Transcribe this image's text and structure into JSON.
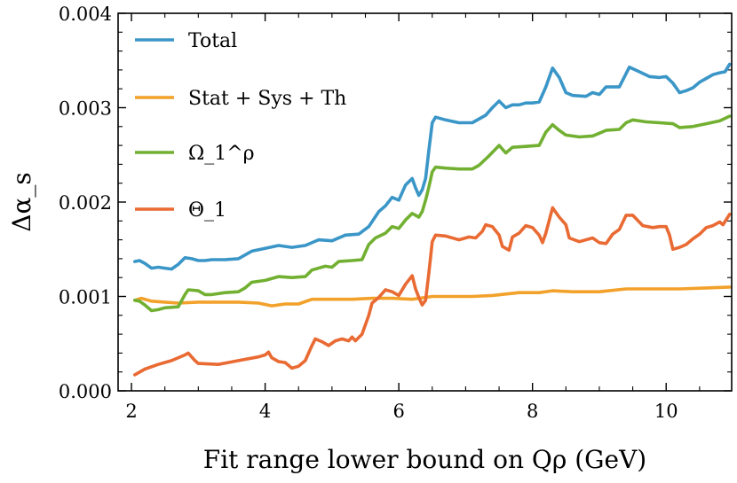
{
  "chart_data": {
    "type": "line",
    "title": "",
    "xlabel": "Fit range lower bound on Qρ (GeV)",
    "ylabel": "Δα_s",
    "xlim": [
      1.8,
      10.98
    ],
    "ylim": [
      0.0,
      0.004
    ],
    "xticks": [
      2,
      4,
      6,
      8,
      10
    ],
    "xtick_labels": [
      "2",
      "4",
      "6",
      "8",
      "10"
    ],
    "yticks": [
      0.0,
      0.001,
      0.002,
      0.003,
      0.004
    ],
    "ytick_labels": [
      "0.000",
      "0.001",
      "0.002",
      "0.003",
      "0.004"
    ],
    "grid": false,
    "legend_position": "top-left",
    "series": [
      {
        "name": "Total",
        "color": "#3b96c8",
        "points": [
          [
            2.05,
            0.00137
          ],
          [
            2.12,
            0.00138
          ],
          [
            2.2,
            0.00135
          ],
          [
            2.3,
            0.0013
          ],
          [
            2.4,
            0.00131
          ],
          [
            2.5,
            0.0013
          ],
          [
            2.6,
            0.00129
          ],
          [
            2.7,
            0.00134
          ],
          [
            2.8,
            0.00141
          ],
          [
            2.9,
            0.0014
          ],
          [
            3.0,
            0.00138
          ],
          [
            3.1,
            0.00138
          ],
          [
            3.2,
            0.00139
          ],
          [
            3.4,
            0.00139
          ],
          [
            3.6,
            0.0014
          ],
          [
            3.8,
            0.00148
          ],
          [
            4.0,
            0.00151
          ],
          [
            4.2,
            0.00154
          ],
          [
            4.4,
            0.00152
          ],
          [
            4.6,
            0.00154
          ],
          [
            4.8,
            0.0016
          ],
          [
            5.0,
            0.00159
          ],
          [
            5.2,
            0.00165
          ],
          [
            5.4,
            0.00166
          ],
          [
            5.55,
            0.00174
          ],
          [
            5.7,
            0.0019
          ],
          [
            5.8,
            0.00196
          ],
          [
            5.9,
            0.00205
          ],
          [
            6.0,
            0.00202
          ],
          [
            6.1,
            0.00218
          ],
          [
            6.2,
            0.00225
          ],
          [
            6.25,
            0.00215
          ],
          [
            6.3,
            0.00207
          ],
          [
            6.35,
            0.00213
          ],
          [
            6.4,
            0.00225
          ],
          [
            6.45,
            0.00255
          ],
          [
            6.5,
            0.00284
          ],
          [
            6.55,
            0.0029
          ],
          [
            6.7,
            0.00287
          ],
          [
            6.9,
            0.00284
          ],
          [
            7.1,
            0.00284
          ],
          [
            7.3,
            0.00292
          ],
          [
            7.4,
            0.003
          ],
          [
            7.5,
            0.00307
          ],
          [
            7.6,
            0.003
          ],
          [
            7.7,
            0.00303
          ],
          [
            7.8,
            0.00303
          ],
          [
            7.9,
            0.00305
          ],
          [
            8.0,
            0.00305
          ],
          [
            8.1,
            0.00306
          ],
          [
            8.2,
            0.00322
          ],
          [
            8.3,
            0.00342
          ],
          [
            8.4,
            0.00332
          ],
          [
            8.5,
            0.00316
          ],
          [
            8.6,
            0.00313
          ],
          [
            8.8,
            0.00312
          ],
          [
            8.9,
            0.00316
          ],
          [
            9.0,
            0.00314
          ],
          [
            9.1,
            0.00322
          ],
          [
            9.3,
            0.00322
          ],
          [
            9.45,
            0.00343
          ],
          [
            9.6,
            0.00338
          ],
          [
            9.75,
            0.00333
          ],
          [
            9.9,
            0.00332
          ],
          [
            10.0,
            0.00333
          ],
          [
            10.1,
            0.00326
          ],
          [
            10.2,
            0.00316
          ],
          [
            10.3,
            0.00318
          ],
          [
            10.4,
            0.00321
          ],
          [
            10.5,
            0.00327
          ],
          [
            10.6,
            0.00331
          ],
          [
            10.7,
            0.00335
          ],
          [
            10.8,
            0.00337
          ],
          [
            10.88,
            0.00338
          ],
          [
            10.95,
            0.00346
          ]
        ]
      },
      {
        "name": "Stat + Sys + Th",
        "color": "#f2a12a",
        "points": [
          [
            2.05,
            0.00096
          ],
          [
            2.15,
            0.00098
          ],
          [
            2.3,
            0.00095
          ],
          [
            2.5,
            0.00094
          ],
          [
            2.7,
            0.00093
          ],
          [
            3.0,
            0.00094
          ],
          [
            3.3,
            0.00094
          ],
          [
            3.6,
            0.00094
          ],
          [
            3.9,
            0.00093
          ],
          [
            4.1,
            0.0009
          ],
          [
            4.3,
            0.00092
          ],
          [
            4.5,
            0.00092
          ],
          [
            4.7,
            0.00097
          ],
          [
            5.0,
            0.00097
          ],
          [
            5.3,
            0.00097
          ],
          [
            5.6,
            0.00098
          ],
          [
            5.9,
            0.00098
          ],
          [
            6.2,
            0.00097
          ],
          [
            6.5,
            0.001
          ],
          [
            6.8,
            0.001
          ],
          [
            7.1,
            0.001
          ],
          [
            7.4,
            0.00101
          ],
          [
            7.8,
            0.00104
          ],
          [
            8.1,
            0.00104
          ],
          [
            8.3,
            0.00106
          ],
          [
            8.6,
            0.00105
          ],
          [
            9.0,
            0.00105
          ],
          [
            9.4,
            0.00108
          ],
          [
            9.8,
            0.00108
          ],
          [
            10.2,
            0.00108
          ],
          [
            10.6,
            0.00109
          ],
          [
            10.95,
            0.0011
          ]
        ]
      },
      {
        "name": "Ω_1^ρ",
        "color": "#72b032",
        "points": [
          [
            2.05,
            0.00096
          ],
          [
            2.12,
            0.00095
          ],
          [
            2.2,
            0.00091
          ],
          [
            2.3,
            0.00085
          ],
          [
            2.4,
            0.00086
          ],
          [
            2.5,
            0.00088
          ],
          [
            2.7,
            0.00089
          ],
          [
            2.8,
            0.00102
          ],
          [
            2.85,
            0.00107
          ],
          [
            3.0,
            0.00106
          ],
          [
            3.1,
            0.00102
          ],
          [
            3.2,
            0.00102
          ],
          [
            3.4,
            0.00104
          ],
          [
            3.6,
            0.00105
          ],
          [
            3.7,
            0.00109
          ],
          [
            3.8,
            0.00115
          ],
          [
            4.0,
            0.00117
          ],
          [
            4.2,
            0.00121
          ],
          [
            4.4,
            0.0012
          ],
          [
            4.6,
            0.00121
          ],
          [
            4.7,
            0.00128
          ],
          [
            4.9,
            0.00132
          ],
          [
            5.0,
            0.00131
          ],
          [
            5.1,
            0.00137
          ],
          [
            5.3,
            0.00138
          ],
          [
            5.45,
            0.00139
          ],
          [
            5.55,
            0.00155
          ],
          [
            5.65,
            0.00162
          ],
          [
            5.8,
            0.00167
          ],
          [
            5.9,
            0.00174
          ],
          [
            6.0,
            0.00172
          ],
          [
            6.1,
            0.00181
          ],
          [
            6.2,
            0.00188
          ],
          [
            6.3,
            0.00184
          ],
          [
            6.35,
            0.0019
          ],
          [
            6.4,
            0.00202
          ],
          [
            6.45,
            0.00216
          ],
          [
            6.5,
            0.00232
          ],
          [
            6.55,
            0.00237
          ],
          [
            6.7,
            0.00236
          ],
          [
            6.9,
            0.00235
          ],
          [
            7.1,
            0.00235
          ],
          [
            7.2,
            0.00239
          ],
          [
            7.35,
            0.00249
          ],
          [
            7.5,
            0.0026
          ],
          [
            7.6,
            0.00252
          ],
          [
            7.7,
            0.00258
          ],
          [
            7.9,
            0.00259
          ],
          [
            8.1,
            0.0026
          ],
          [
            8.2,
            0.00274
          ],
          [
            8.3,
            0.00282
          ],
          [
            8.4,
            0.00276
          ],
          [
            8.5,
            0.00271
          ],
          [
            8.7,
            0.00269
          ],
          [
            8.9,
            0.0027
          ],
          [
            9.0,
            0.00273
          ],
          [
            9.1,
            0.00276
          ],
          [
            9.3,
            0.00277
          ],
          [
            9.4,
            0.00284
          ],
          [
            9.5,
            0.00287
          ],
          [
            9.7,
            0.00285
          ],
          [
            9.9,
            0.00284
          ],
          [
            10.1,
            0.00283
          ],
          [
            10.2,
            0.00279
          ],
          [
            10.4,
            0.0028
          ],
          [
            10.6,
            0.00283
          ],
          [
            10.8,
            0.00286
          ],
          [
            10.95,
            0.00291
          ]
        ]
      },
      {
        "name": "Θ_1",
        "color": "#e96a33",
        "points": [
          [
            2.05,
            0.00017
          ],
          [
            2.2,
            0.00023
          ],
          [
            2.4,
            0.00028
          ],
          [
            2.6,
            0.00032
          ],
          [
            2.8,
            0.00038
          ],
          [
            2.85,
            0.0004
          ],
          [
            2.95,
            0.00032
          ],
          [
            3.0,
            0.00029
          ],
          [
            3.3,
            0.00028
          ],
          [
            3.6,
            0.00032
          ],
          [
            3.9,
            0.00036
          ],
          [
            4.0,
            0.00038
          ],
          [
            4.05,
            0.00041
          ],
          [
            4.1,
            0.00035
          ],
          [
            4.2,
            0.00031
          ],
          [
            4.3,
            0.0003
          ],
          [
            4.4,
            0.00024
          ],
          [
            4.5,
            0.00026
          ],
          [
            4.6,
            0.00032
          ],
          [
            4.7,
            0.00048
          ],
          [
            4.75,
            0.00055
          ],
          [
            4.85,
            0.00052
          ],
          [
            4.95,
            0.00048
          ],
          [
            5.05,
            0.00053
          ],
          [
            5.15,
            0.00055
          ],
          [
            5.25,
            0.00053
          ],
          [
            5.3,
            0.00057
          ],
          [
            5.35,
            0.00053
          ],
          [
            5.45,
            0.0006
          ],
          [
            5.55,
            0.0008
          ],
          [
            5.6,
            0.00093
          ],
          [
            5.7,
            0.00099
          ],
          [
            5.8,
            0.00107
          ],
          [
            5.9,
            0.00105
          ],
          [
            6.0,
            0.00101
          ],
          [
            6.1,
            0.00113
          ],
          [
            6.2,
            0.00122
          ],
          [
            6.25,
            0.00108
          ],
          [
            6.3,
            0.00099
          ],
          [
            6.35,
            0.00091
          ],
          [
            6.4,
            0.00096
          ],
          [
            6.45,
            0.00125
          ],
          [
            6.5,
            0.00158
          ],
          [
            6.55,
            0.00165
          ],
          [
            6.7,
            0.00164
          ],
          [
            6.9,
            0.0016
          ],
          [
            7.05,
            0.00163
          ],
          [
            7.15,
            0.00162
          ],
          [
            7.25,
            0.00169
          ],
          [
            7.3,
            0.00176
          ],
          [
            7.4,
            0.00174
          ],
          [
            7.5,
            0.00165
          ],
          [
            7.55,
            0.00153
          ],
          [
            7.65,
            0.00149
          ],
          [
            7.7,
            0.00163
          ],
          [
            7.8,
            0.00167
          ],
          [
            7.9,
            0.00175
          ],
          [
            8.0,
            0.00173
          ],
          [
            8.1,
            0.00165
          ],
          [
            8.15,
            0.00157
          ],
          [
            8.2,
            0.00167
          ],
          [
            8.3,
            0.00194
          ],
          [
            8.4,
            0.00184
          ],
          [
            8.5,
            0.00176
          ],
          [
            8.55,
            0.00162
          ],
          [
            8.7,
            0.00158
          ],
          [
            8.9,
            0.00162
          ],
          [
            9.0,
            0.00157
          ],
          [
            9.1,
            0.00156
          ],
          [
            9.2,
            0.00166
          ],
          [
            9.3,
            0.00171
          ],
          [
            9.4,
            0.00186
          ],
          [
            9.5,
            0.00186
          ],
          [
            9.65,
            0.00175
          ],
          [
            9.8,
            0.00173
          ],
          [
            9.9,
            0.00174
          ],
          [
            10.0,
            0.00174
          ],
          [
            10.05,
            0.00165
          ],
          [
            10.1,
            0.0015
          ],
          [
            10.2,
            0.00152
          ],
          [
            10.3,
            0.00155
          ],
          [
            10.4,
            0.00161
          ],
          [
            10.5,
            0.00166
          ],
          [
            10.6,
            0.00173
          ],
          [
            10.7,
            0.00175
          ],
          [
            10.8,
            0.00179
          ],
          [
            10.85,
            0.00176
          ],
          [
            10.95,
            0.00187
          ]
        ]
      }
    ]
  }
}
